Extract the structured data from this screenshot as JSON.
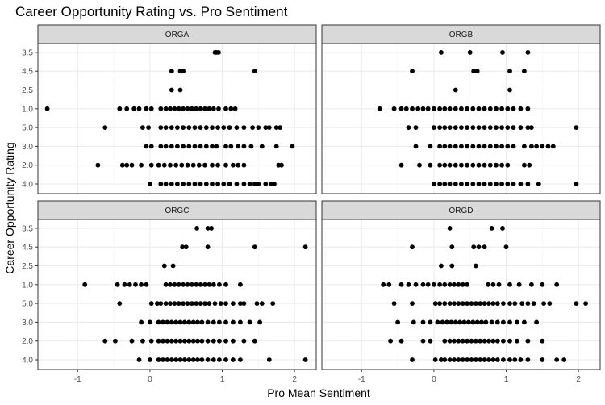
{
  "chart_data": {
    "type": "scatter",
    "title": "Career Opportunity Rating vs. Pro Sentiment",
    "xlabel": "Pro Mean Sentiment",
    "ylabel": "Career Opportunity Rating",
    "xlim": [
      -1.55,
      2.3
    ],
    "x_ticks": [
      -1,
      0,
      1,
      2
    ],
    "y_categories": [
      "4.0",
      "2.0",
      "3.0",
      "5.0",
      "1.0",
      "2.5",
      "4.5",
      "3.5"
    ],
    "grid": true,
    "facets": [
      {
        "name": "ORGA",
        "points": [
          {
            "y": "3.5",
            "x": [
              0.9,
              0.92,
              0.95
            ]
          },
          {
            "y": "4.5",
            "x": [
              0.3,
              0.42,
              0.46,
              1.45
            ]
          },
          {
            "y": "2.5",
            "x": [
              0.3,
              0.42
            ]
          },
          {
            "y": "1.0",
            "x": [
              -1.42,
              -0.42,
              -0.32,
              -0.22,
              -0.15,
              -0.05,
              0.02,
              0.15,
              0.22,
              0.28,
              0.34,
              0.4,
              0.46,
              0.52,
              0.58,
              0.64,
              0.7,
              0.76,
              0.82,
              0.88,
              0.95,
              1.05,
              1.12,
              1.18
            ]
          },
          {
            "y": "5.0",
            "x": [
              -0.62,
              -0.1,
              -0.02,
              0.15,
              0.22,
              0.3,
              0.38,
              0.46,
              0.54,
              0.62,
              0.7,
              0.78,
              0.86,
              0.94,
              1.02,
              1.1,
              1.2,
              1.3,
              1.42,
              1.5,
              1.6,
              1.65,
              1.75,
              1.8
            ]
          },
          {
            "y": "3.0",
            "x": [
              -0.05,
              0.02,
              0.15,
              0.22,
              0.3,
              0.38,
              0.46,
              0.54,
              0.62,
              0.7,
              0.78,
              0.86,
              0.92,
              1.05,
              1.12,
              1.22,
              1.3,
              1.4,
              1.55,
              1.75,
              1.97
            ]
          },
          {
            "y": "2.0",
            "x": [
              -0.72,
              -0.38,
              -0.32,
              -0.25,
              -0.12,
              0.02,
              0.12,
              0.2,
              0.28,
              0.36,
              0.44,
              0.52,
              0.6,
              0.68,
              0.76,
              0.86,
              0.94,
              1.05,
              1.15,
              1.22,
              1.3,
              1.78,
              1.82
            ]
          },
          {
            "y": "4.0",
            "x": [
              0.0,
              0.15,
              0.22,
              0.3,
              0.38,
              0.46,
              0.54,
              0.62,
              0.7,
              0.78,
              0.86,
              0.94,
              1.02,
              1.1,
              1.2,
              1.3,
              1.38,
              1.45,
              1.5,
              1.6,
              1.68,
              1.72
            ]
          }
        ]
      },
      {
        "name": "ORGB",
        "points": [
          {
            "y": "3.5",
            "x": [
              0.1,
              0.5,
              0.95,
              1.3
            ]
          },
          {
            "y": "4.5",
            "x": [
              -0.3,
              0.55,
              0.6,
              1.05,
              1.25
            ]
          },
          {
            "y": "2.5",
            "x": [
              0.3,
              1.05
            ]
          },
          {
            "y": "1.0",
            "x": [
              -0.75,
              -0.55,
              -0.45,
              -0.38,
              -0.3,
              -0.22,
              -0.15,
              -0.08,
              0.0,
              0.08,
              0.15,
              0.22,
              0.3,
              0.38,
              0.46,
              0.54,
              0.62,
              0.7,
              0.78,
              0.86,
              0.94,
              1.02,
              1.1,
              1.2,
              1.3
            ]
          },
          {
            "y": "5.0",
            "x": [
              -0.35,
              -0.25,
              0.0,
              0.08,
              0.15,
              0.22,
              0.3,
              0.38,
              0.46,
              0.54,
              0.62,
              0.7,
              0.78,
              0.86,
              0.94,
              1.02,
              1.1,
              1.2,
              1.3,
              1.35,
              1.97
            ]
          },
          {
            "y": "3.0",
            "x": [
              -0.25,
              -0.05,
              0.08,
              0.15,
              0.22,
              0.3,
              0.38,
              0.46,
              0.54,
              0.62,
              0.7,
              0.78,
              0.86,
              0.94,
              1.02,
              1.1,
              1.25,
              1.35,
              1.42,
              1.5,
              1.58,
              1.65
            ]
          },
          {
            "y": "2.0",
            "x": [
              -0.45,
              -0.2,
              -0.05,
              0.08,
              0.15,
              0.22,
              0.3,
              0.38,
              0.46,
              0.54,
              0.62,
              0.7,
              0.78,
              0.86,
              0.94,
              1.02,
              1.25,
              1.32
            ]
          },
          {
            "y": "4.0",
            "x": [
              0.0,
              0.08,
              0.15,
              0.22,
              0.3,
              0.38,
              0.46,
              0.54,
              0.62,
              0.7,
              0.78,
              0.86,
              0.94,
              1.02,
              1.1,
              1.2,
              1.3,
              1.45,
              1.97
            ]
          }
        ]
      },
      {
        "name": "ORGC",
        "points": [
          {
            "y": "3.5",
            "x": [
              0.65,
              0.8,
              0.85
            ]
          },
          {
            "y": "4.5",
            "x": [
              0.45,
              0.5,
              0.8,
              1.45,
              2.15
            ]
          },
          {
            "y": "2.5",
            "x": [
              0.2,
              0.32
            ]
          },
          {
            "y": "1.0",
            "x": [
              -0.9,
              -0.45,
              -0.35,
              -0.28,
              -0.2,
              -0.12,
              -0.05,
              0.22,
              0.28,
              0.34,
              0.4,
              0.46,
              0.52,
              0.58,
              0.64,
              0.7,
              0.76,
              0.82,
              0.88,
              0.96,
              1.05,
              1.25
            ]
          },
          {
            "y": "5.0",
            "x": [
              -0.42,
              0.02,
              0.1,
              0.15,
              0.22,
              0.28,
              0.34,
              0.4,
              0.46,
              0.52,
              0.58,
              0.64,
              0.7,
              0.76,
              0.82,
              0.9,
              0.98,
              1.05,
              1.15,
              1.25,
              1.3,
              1.48,
              1.55,
              1.7
            ]
          },
          {
            "y": "3.0",
            "x": [
              -0.12,
              0.0,
              0.12,
              0.18,
              0.24,
              0.3,
              0.36,
              0.42,
              0.48,
              0.54,
              0.6,
              0.66,
              0.72,
              0.8,
              0.88,
              0.96,
              1.05,
              1.15,
              1.25,
              1.38,
              1.52
            ]
          },
          {
            "y": "2.0",
            "x": [
              -0.62,
              -0.48,
              -0.25,
              -0.1,
              0.02,
              0.12,
              0.18,
              0.24,
              0.3,
              0.36,
              0.42,
              0.48,
              0.54,
              0.6,
              0.66,
              0.72,
              0.8,
              0.88,
              0.96,
              1.05,
              1.15,
              1.3,
              1.45
            ]
          },
          {
            "y": "4.0",
            "x": [
              -0.15,
              0.0,
              0.12,
              0.18,
              0.24,
              0.3,
              0.36,
              0.42,
              0.48,
              0.54,
              0.6,
              0.66,
              0.72,
              0.8,
              0.88,
              0.96,
              1.05,
              1.15,
              1.25,
              1.65,
              2.15
            ]
          }
        ]
      },
      {
        "name": "ORGD",
        "points": [
          {
            "y": "3.5",
            "x": [
              0.22,
              0.8,
              0.95
            ]
          },
          {
            "y": "4.5",
            "x": [
              -0.3,
              0.25,
              0.55,
              0.62,
              0.7,
              1.0
            ]
          },
          {
            "y": "2.5",
            "x": [
              0.1,
              0.25,
              0.58
            ]
          },
          {
            "y": "1.0",
            "x": [
              -0.7,
              -0.62,
              -0.45,
              -0.35,
              -0.25,
              -0.15,
              -0.08,
              0.0,
              0.08,
              0.15,
              0.22,
              0.28,
              0.34,
              0.4,
              0.46,
              0.75,
              0.82,
              0.9,
              1.05,
              1.18,
              1.35,
              1.5,
              1.7
            ]
          },
          {
            "y": "5.0",
            "x": [
              -0.55,
              -0.3,
              0.02,
              0.08,
              0.15,
              0.22,
              0.28,
              0.34,
              0.4,
              0.46,
              0.52,
              0.58,
              0.64,
              0.7,
              0.76,
              0.82,
              0.88,
              0.96,
              1.05,
              1.12,
              1.22,
              1.3,
              1.38,
              1.52,
              1.6,
              1.97,
              2.1
            ]
          },
          {
            "y": "3.0",
            "x": [
              -0.5,
              -0.28,
              -0.15,
              -0.05,
              0.05,
              0.12,
              0.18,
              0.24,
              0.3,
              0.36,
              0.42,
              0.48,
              0.54,
              0.6,
              0.66,
              0.72,
              0.8,
              0.88,
              0.96,
              1.05,
              1.15,
              1.25,
              1.42
            ]
          },
          {
            "y": "2.0",
            "x": [
              -0.6,
              -0.45,
              -0.15,
              -0.05,
              0.15,
              0.22,
              0.28,
              0.34,
              0.4,
              0.46,
              0.52,
              0.58,
              0.64,
              0.7,
              0.76,
              0.82,
              0.88,
              0.96,
              1.05,
              1.15,
              1.3,
              1.5
            ]
          },
          {
            "y": "4.0",
            "x": [
              -0.3,
              0.02,
              0.1,
              0.15,
              0.22,
              0.28,
              0.34,
              0.4,
              0.46,
              0.52,
              0.58,
              0.64,
              0.7,
              0.76,
              0.82,
              0.88,
              0.96,
              1.05,
              1.12,
              1.2,
              1.3,
              1.5,
              1.7,
              1.8
            ]
          }
        ]
      }
    ]
  }
}
